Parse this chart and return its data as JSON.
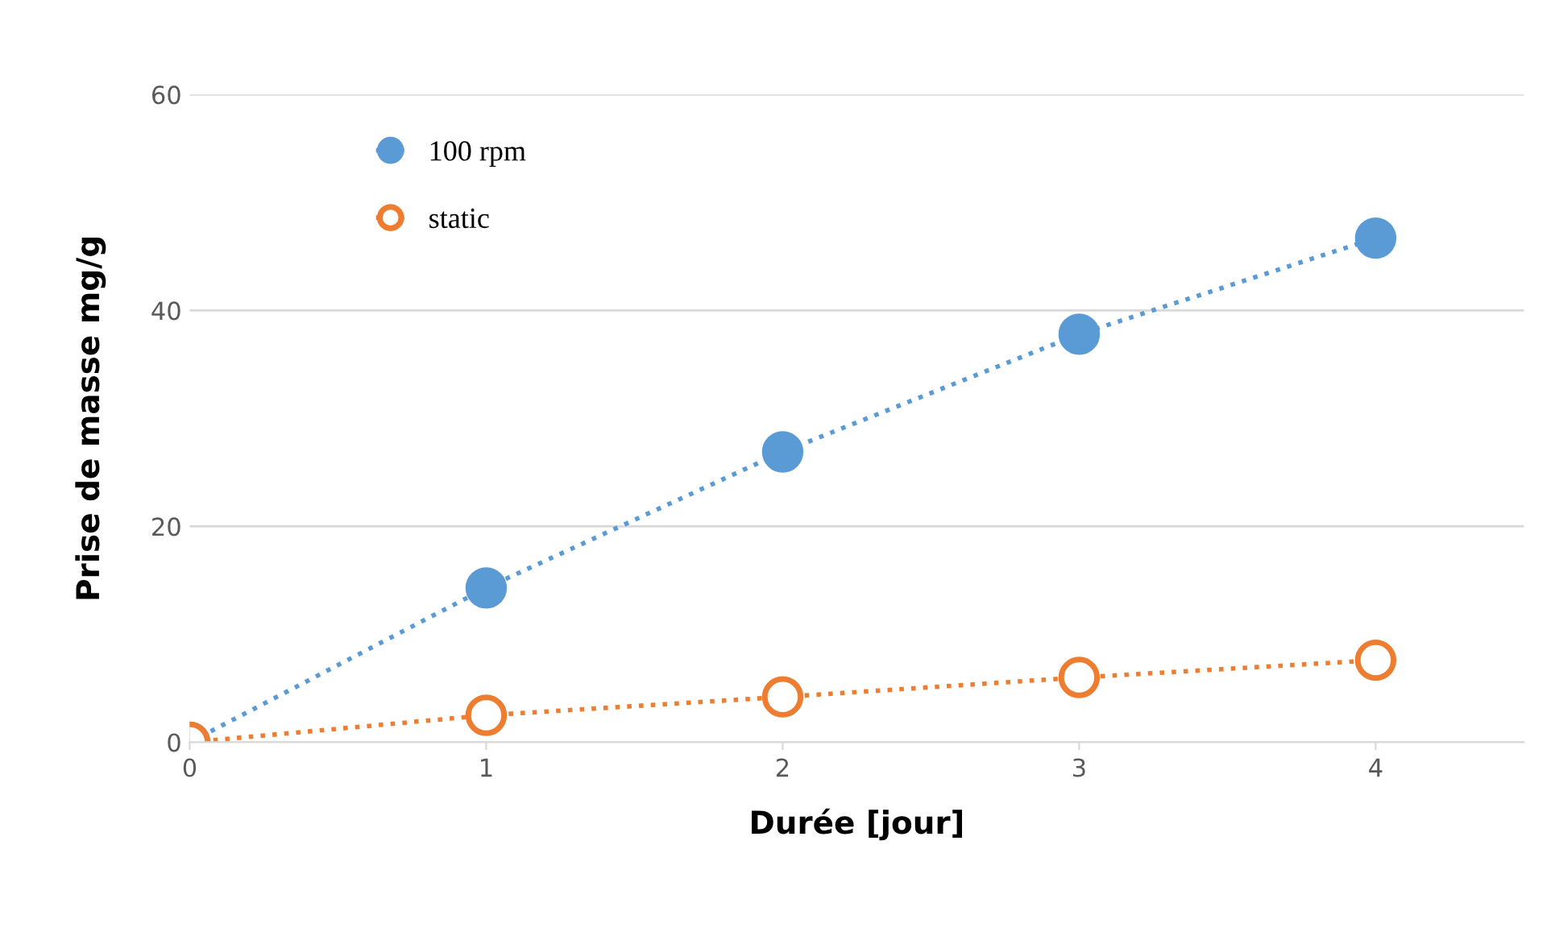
{
  "chart_data": {
    "type": "line",
    "xlabel": "Durée [jour]",
    "ylabel": "Prise de masse mg/g",
    "x": [
      0,
      1,
      2,
      3,
      4
    ],
    "series": [
      {
        "name": "100 rpm",
        "color": "#5b9bd5",
        "values": [
          0,
          14.3,
          26.9,
          37.8,
          46.7
        ]
      },
      {
        "name": "static",
        "color": "#ed7d31",
        "values": [
          0,
          2.5,
          4.2,
          6.0,
          7.6
        ]
      }
    ],
    "xlim": [
      0,
      4.5
    ],
    "xticks": [
      0,
      1,
      2,
      3,
      4
    ],
    "ylim": [
      0,
      60
    ],
    "yticks": [
      0,
      20,
      40,
      60
    ],
    "grid": "y",
    "legend": "top left",
    "marker": "circle",
    "line_style": "dotted"
  }
}
